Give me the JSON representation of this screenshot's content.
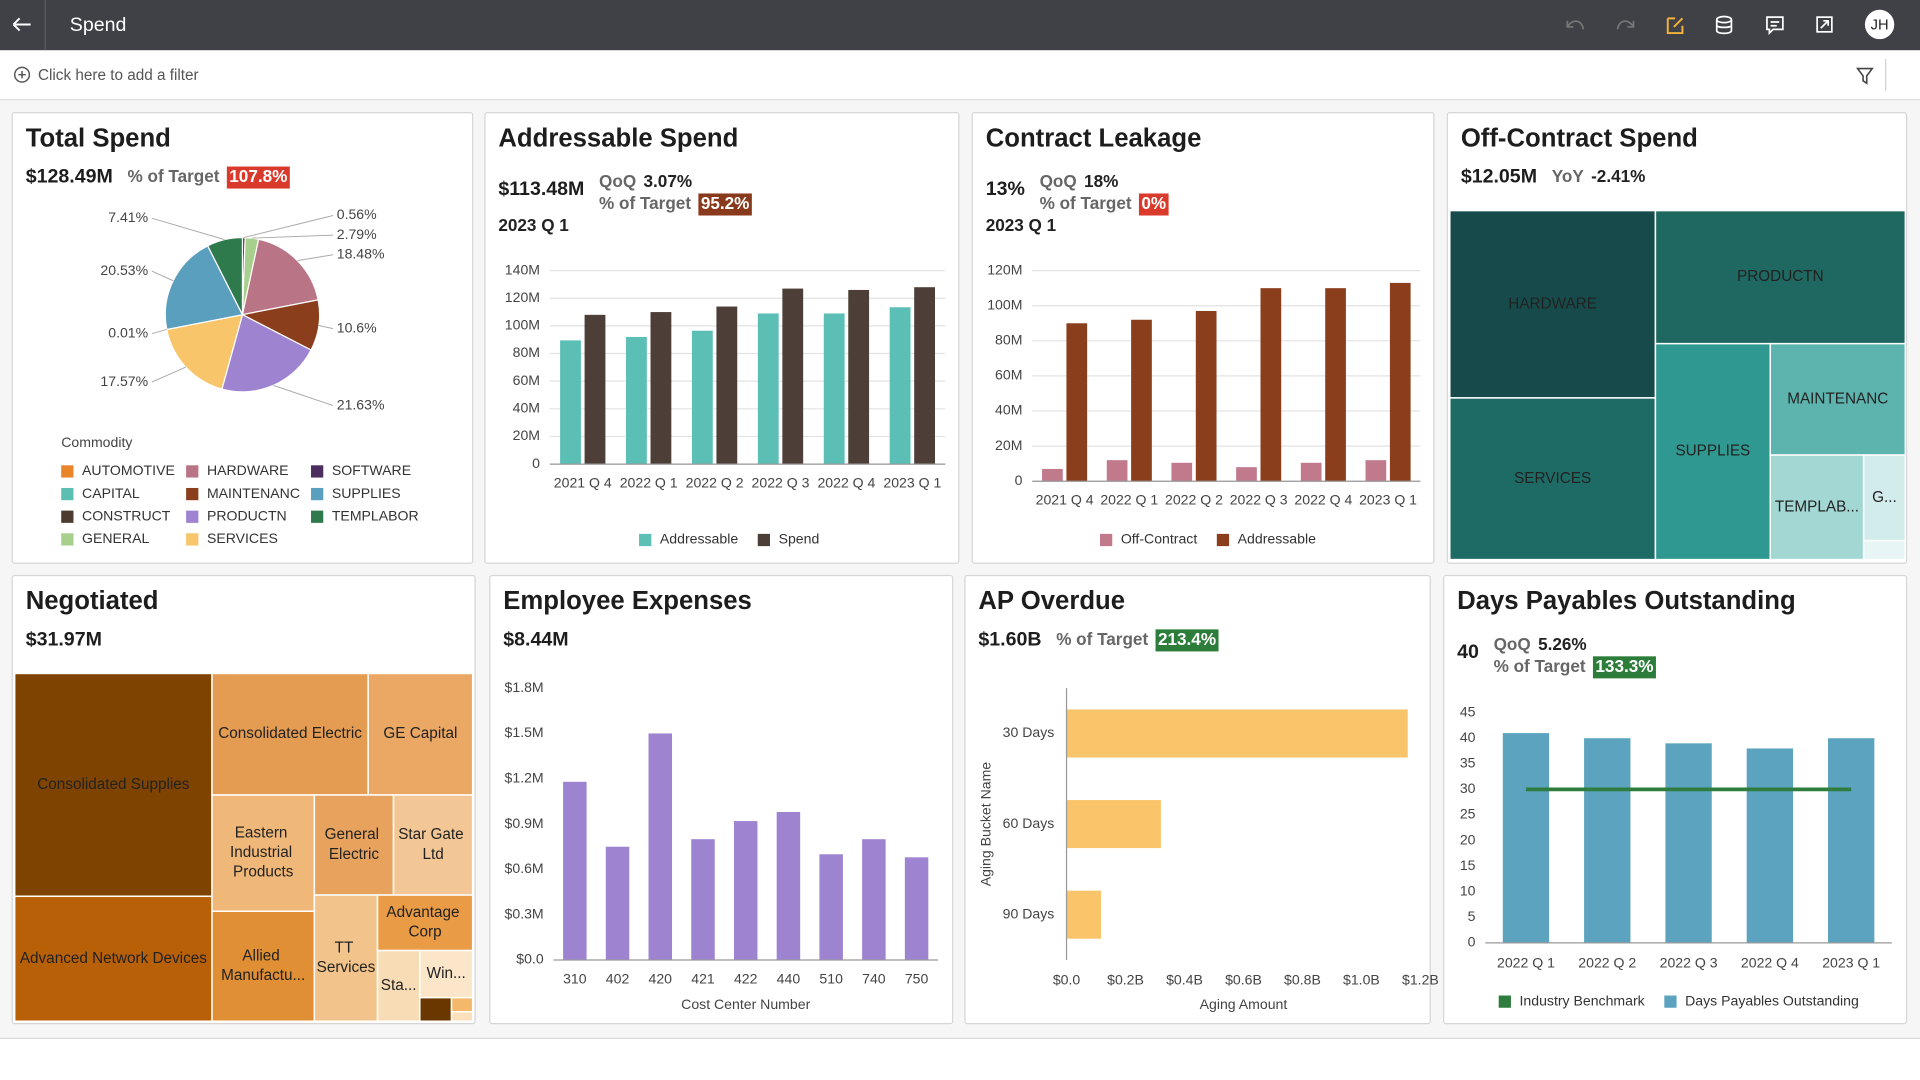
{
  "header": {
    "title": "Spend",
    "avatar": "JH"
  },
  "filter_bar": {
    "prompt": "Click here to add a filter"
  },
  "chart_data": [
    {
      "type": "pie",
      "title": "Total Spend",
      "kpi": "$128.49M",
      "kpi_items": [
        {
          "label": "% of Target",
          "value": "107.8%",
          "badge_color": "#d93a2b"
        }
      ],
      "legend_title": "Commodity",
      "categories": [
        "AUTOMOTIVE",
        "CAPITAL",
        "CONSTRUCT",
        "GENERAL",
        "HARDWARE",
        "MAINTENANC",
        "PRODUCTN",
        "SERVICES",
        "SOFTWARE",
        "SUPPLIES",
        "TEMPLABOR"
      ],
      "values": [
        null,
        null,
        0.56,
        2.79,
        18.48,
        10.6,
        21.63,
        17.57,
        0.01,
        20.53,
        7.41
      ],
      "value_labels": [
        null,
        null,
        "0.56%",
        "2.79%",
        "18.48%",
        "10.6%",
        "21.63%",
        "17.57%",
        "0.01%",
        "20.53%",
        "7.41%"
      ],
      "colors": [
        "#e8842a",
        "#5bbfb5",
        "#4d3b30",
        "#a8d08d",
        "#b97486",
        "#8a3e1c",
        "#9e83d1",
        "#f8c56a",
        "#4b2d5f",
        "#5b9fbe",
        "#2f7a4c"
      ]
    },
    {
      "type": "bar",
      "title": "Addressable Spend",
      "kpi": "$113.48M",
      "kpi_items": [
        {
          "label": "QoQ",
          "value": "3.07%"
        },
        {
          "label": "% of Target",
          "value": "95.2%",
          "badge_color": "#8a3a1c"
        }
      ],
      "period": "2023 Q 1",
      "categories": [
        "2021 Q 4",
        "2022 Q 1",
        "2022 Q 2",
        "2022 Q 3",
        "2022 Q 4",
        "2023 Q 1"
      ],
      "series": [
        {
          "name": "Addressable",
          "color": "#5bbfb5",
          "values": [
            89.5,
            92,
            96.5,
            109,
            109,
            113.48
          ]
        },
        {
          "name": "Spend",
          "color": "#4d3f38",
          "values": [
            108,
            110,
            114,
            127,
            126,
            128
          ]
        }
      ],
      "ylim": [
        0,
        140
      ],
      "yticks": [
        0,
        {
          "value": 20,
          "label": "20M"
        },
        {
          "value": 40,
          "label": "40M"
        },
        {
          "value": 60,
          "label": "60M"
        },
        {
          "value": 80,
          "label": "80M"
        },
        {
          "value": 100,
          "label": "100M"
        },
        {
          "value": 120,
          "label": "120M"
        },
        {
          "value": 140,
          "label": "140M"
        }
      ],
      "grid": true
    },
    {
      "type": "bar",
      "title": "Contract Leakage",
      "kpi": "13%",
      "kpi_items": [
        {
          "label": "QoQ",
          "value": "18%"
        },
        {
          "label": "% of Target",
          "value": "0%",
          "badge_color": "#d93a2b"
        }
      ],
      "period": "2023 Q 1",
      "categories": [
        "2021 Q 4",
        "2022 Q 1",
        "2022 Q 2",
        "2022 Q 3",
        "2022 Q 4",
        "2023 Q 1"
      ],
      "series": [
        {
          "name": "Off-Contract",
          "color": "#c07a8c",
          "values": [
            7,
            12,
            10.5,
            8,
            10.5,
            12
          ]
        },
        {
          "name": "Addressable",
          "color": "#8a3e1c",
          "values": [
            90,
            92,
            97,
            110,
            110,
            113
          ]
        }
      ],
      "ylim": [
        0,
        120
      ],
      "yticks": [
        0,
        {
          "value": 20,
          "label": "20M"
        },
        {
          "value": 40,
          "label": "40M"
        },
        {
          "value": 60,
          "label": "60M"
        },
        {
          "value": 80,
          "label": "80M"
        },
        {
          "value": 100,
          "label": "100M"
        },
        {
          "value": 120,
          "label": "120M"
        }
      ],
      "grid": true
    },
    {
      "type": "treemap",
      "title": "Off-Contract Spend",
      "kpi": "$12.05M",
      "kpi_items": [
        {
          "label": "YoY",
          "value": "-2.41%"
        }
      ],
      "categories": [
        "HARDWARE",
        "SERVICES",
        "PRODUCTN",
        "SUPPLIES",
        "MAINTENANC",
        "TEMPLAB...",
        "G...",
        null
      ],
      "values": [
        2.92,
        2.52,
        2.52,
        1.88,
        1.14,
        0.74,
        0.27,
        0.06
      ],
      "colors": [
        "#174a4a",
        "#1e6a65",
        "#1f6761",
        "#2f9890",
        "#5db4ae",
        "#a3d7d3",
        "#d1ecea",
        "#e7f5f4"
      ]
    },
    {
      "type": "treemap",
      "title": "Negotiated",
      "kpi": "$31.97M",
      "categories": [
        "Consolidated Supplies",
        "Advanced Network Devices",
        "Consolidated Electric",
        "GE Capital",
        "Eastern Industrial Products",
        "Allied Manufactu...",
        "General Electric",
        "Star Gate Ltd",
        "TT Services",
        "Advantage Corp",
        "Sta...",
        "Win...",
        null,
        null,
        null
      ],
      "values": [
        8.83,
        4.95,
        3.81,
        2.55,
        2.39,
        2.26,
        1.59,
        1.59,
        1.6,
        1.06,
        0.6,
        0.5,
        0.15,
        0.06,
        0.04
      ],
      "colors": [
        "#7f4300",
        "#b86008",
        "#e39c52",
        "#eba865",
        "#f0b878",
        "#e08f35",
        "#e7a35d",
        "#f3c795",
        "#f2c38a",
        "#e99b45",
        "#f8dcb5",
        "#fbe6c9",
        "#6a3700",
        "#f4b86a",
        "#fbe0bb"
      ]
    },
    {
      "type": "bar",
      "title": "Employee Expenses",
      "kpi": "$8.44M",
      "categories": [
        "310",
        "402",
        "420",
        "421",
        "422",
        "440",
        "510",
        "740",
        "750"
      ],
      "values": [
        1.18,
        0.75,
        1.5,
        0.8,
        0.92,
        0.98,
        0.7,
        0.8,
        0.68
      ],
      "color": "#9e83d1",
      "xlabel": "Cost Center Number",
      "ylim": [
        0,
        1.8
      ],
      "yticks": [
        {
          "value": 0,
          "label": "$0.0"
        },
        {
          "value": 0.3,
          "label": "$0.3M"
        },
        {
          "value": 0.6,
          "label": "$0.6M"
        },
        {
          "value": 0.9,
          "label": "$0.9M"
        },
        {
          "value": 1.2,
          "label": "$1.2M"
        },
        {
          "value": 1.5,
          "label": "$1.5M"
        },
        {
          "value": 1.8,
          "label": "$1.8M"
        }
      ],
      "grid": false
    },
    {
      "type": "hbar",
      "title": "AP Overdue",
      "kpi": "$1.60B",
      "kpi_items": [
        {
          "label": "% of Target",
          "value": "213.4%",
          "badge_color": "#2d7d3a"
        }
      ],
      "categories": [
        "30 Days",
        "60 Days",
        "90 Days"
      ],
      "values": [
        1.157,
        0.32,
        0.117
      ],
      "color": "#f9c46a",
      "xlabel": "Aging Amount",
      "ylabel": "Aging Bucket Name",
      "xlim": [
        0,
        1.2
      ],
      "xticks": [
        {
          "value": 0,
          "label": "$0.0"
        },
        {
          "value": 0.2,
          "label": "$0.2B"
        },
        {
          "value": 0.4,
          "label": "$0.4B"
        },
        {
          "value": 0.6,
          "label": "$0.6B"
        },
        {
          "value": 0.8,
          "label": "$0.8B"
        },
        {
          "value": 1,
          "label": "$1.0B"
        },
        {
          "value": 1.2,
          "label": "$1.2B"
        }
      ],
      "grid": false
    },
    {
      "type": "combo",
      "title": "Days Payables Outstanding",
      "kpi": "40",
      "kpi_items": [
        {
          "label": "QoQ",
          "value": "5.26%"
        },
        {
          "label": "% of Target",
          "value": "133.3%",
          "badge_color": "#2d7d3a"
        }
      ],
      "categories": [
        "2022 Q 1",
        "2022 Q 2",
        "2022 Q 3",
        "2022 Q 4",
        "2023 Q 1"
      ],
      "series": [
        {
          "name": "Industry Benchmark",
          "color": "#2e7d3e",
          "mark": "line",
          "values": [
            30,
            30,
            30,
            30,
            30
          ]
        },
        {
          "name": "Days Payables Outstanding",
          "color": "#5ba3be",
          "mark": "bar",
          "values": [
            41,
            40,
            39,
            38,
            40
          ]
        }
      ],
      "ylim": [
        0,
        45
      ],
      "yticks": [
        0,
        5,
        10,
        15,
        20,
        25,
        30,
        35,
        40,
        45
      ],
      "grid": false
    }
  ]
}
